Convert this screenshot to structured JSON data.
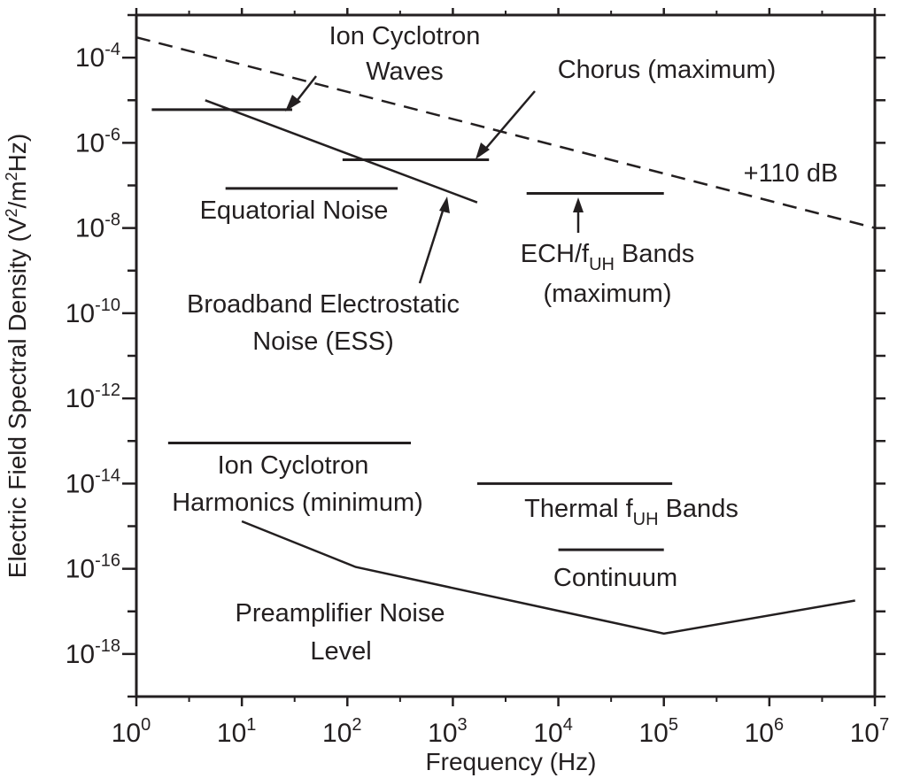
{
  "chart_data": {
    "type": "line",
    "xscale": "log",
    "yscale": "log",
    "xlim": [
      1,
      10000000
    ],
    "ylim": [
      1e-19,
      0.001
    ],
    "xlabel": "Frequency (Hz)",
    "ylabel": {
      "pre": "Electric Field Spectral Density (V",
      "sup1": "2",
      "mid": "/m",
      "sup2": "2",
      "post": "Hz)"
    },
    "x_ticks": [
      {
        "base": "10",
        "exp": "0",
        "value": 1
      },
      {
        "base": "10",
        "exp": "1",
        "value": 10
      },
      {
        "base": "10",
        "exp": "2",
        "value": 100
      },
      {
        "base": "10",
        "exp": "3",
        "value": 1000
      },
      {
        "base": "10",
        "exp": "4",
        "value": 10000
      },
      {
        "base": "10",
        "exp": "5",
        "value": 100000
      },
      {
        "base": "10",
        "exp": "6",
        "value": 1000000
      },
      {
        "base": "10",
        "exp": "7",
        "value": 10000000
      }
    ],
    "y_ticks": [
      {
        "base": "10",
        "exp": "-4",
        "value": 0.0001
      },
      {
        "base": "10",
        "exp": "-6",
        "value": 1e-06
      },
      {
        "base": "10",
        "exp": "-8",
        "value": 1e-08
      },
      {
        "base": "10",
        "exp": "-10",
        "value": 1e-10
      },
      {
        "base": "10",
        "exp": "-12",
        "value": 1e-12
      },
      {
        "base": "10",
        "exp": "-14",
        "value": 1e-14
      },
      {
        "base": "10",
        "exp": "-16",
        "value": 1e-16
      },
      {
        "base": "10",
        "exp": "-18",
        "value": 1e-18
      }
    ],
    "series": [
      {
        "dashed": true,
        "x": [
          1,
          10000000
        ],
        "y": [
          0.0003,
          1e-08
        ]
      },
      {
        "x": [
          4.5,
          1700
        ],
        "y": [
          1e-05,
          4e-08
        ]
      },
      {
        "x": [
          10,
          120,
          100000,
          6500000
        ],
        "y": [
          1.3e-15,
          1.1e-16,
          3e-18,
          1.8e-17
        ]
      }
    ],
    "bands": [
      {
        "x": [
          1.4,
          30
        ],
        "y": 6e-06
      },
      {
        "x": [
          90,
          2200
        ],
        "y": 4e-07
      },
      {
        "x": [
          7,
          300
        ],
        "y": 8.5e-08
      },
      {
        "x": [
          5000,
          100000
        ],
        "y": 6.5e-08
      },
      {
        "x": [
          2,
          400
        ],
        "y": 9e-14
      },
      {
        "x": [
          1700,
          120000
        ],
        "y": 1e-14
      },
      {
        "x": [
          10000,
          100000
        ],
        "y": 2.8e-16
      }
    ],
    "annotations": {
      "ion_cyclotron_waves": [
        "Ion Cyclotron",
        "Waves"
      ],
      "chorus": "Chorus (maximum)",
      "plus_110_db": "+110 dB",
      "equatorial_noise": "Equatorial Noise",
      "ech": {
        "pre": "ECH/f",
        "sub": "UH",
        "post": " Bands",
        "line2": "(maximum)"
      },
      "broadband": [
        "Broadband Electrostatic",
        "Noise (ESS)"
      ],
      "ion_cyclotron_harmonics": [
        "Ion Cyclotron",
        "Harmonics (minimum)"
      ],
      "thermal": {
        "pre": "Thermal f",
        "sub": "UH",
        "post": " Bands"
      },
      "continuum": "Continuum",
      "preamp": [
        "Preamplifier Noise",
        "Level"
      ]
    }
  }
}
